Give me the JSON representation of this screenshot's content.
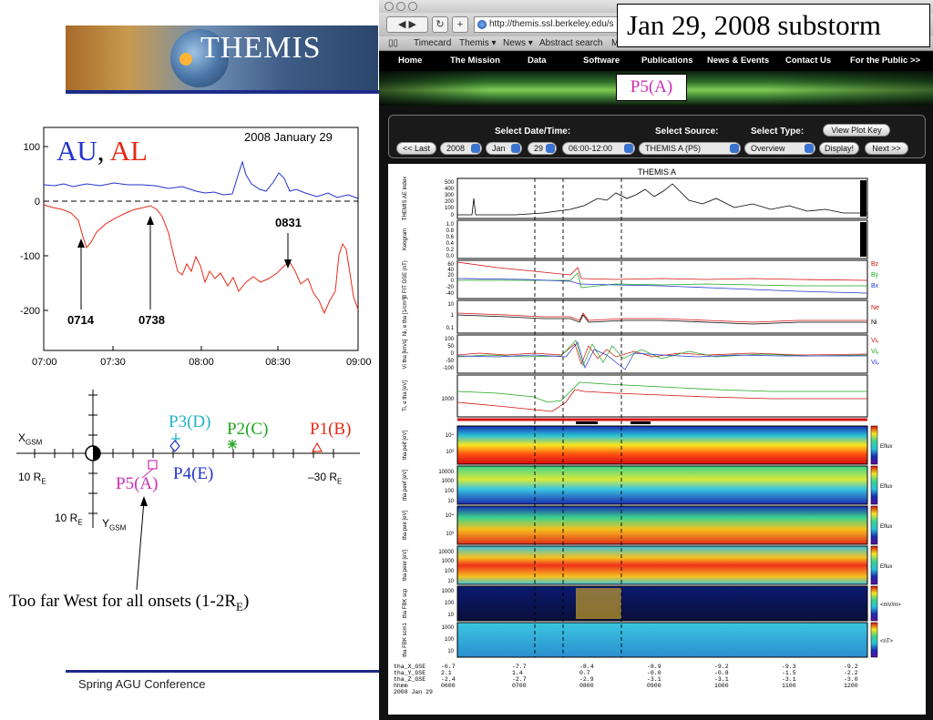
{
  "slide": {
    "logo_text": "THEMIS",
    "footer": "Spring AGU Conference",
    "callout": "Too far West for all onsets (1-2R",
    "callout_sub": "E",
    "callout_end": ")",
    "substorm_title": "Jan 29, 2008 substorm",
    "p5_label": "P5(A)"
  },
  "ae_plot": {
    "date": "2008 January 29",
    "au_label": "AU",
    "comma": ",",
    "al_label": "AL",
    "y_ticks": [
      "100",
      "0",
      "-100",
      "-200"
    ],
    "x_ticks": [
      "07:00",
      "07:30",
      "08:00",
      "08:30",
      "09:00"
    ],
    "annotations": [
      "0714",
      "0738",
      "0831"
    ],
    "colors": {
      "au": "#2233cc",
      "al": "#e52a15"
    }
  },
  "orbit_diagram": {
    "x_axis_label": "X",
    "x_axis_sub": "GSM",
    "y_axis_label": "Y",
    "y_axis_sub": "GSM",
    "left_scale": "10 R",
    "right_scale": "–30 R",
    "bottom_scale": "10 R",
    "scale_sub": "E",
    "probes": [
      {
        "label": "P3(D)",
        "color": "#1fb5c4"
      },
      {
        "label": "P2(C)",
        "color": "#1ea61e"
      },
      {
        "label": "P1(B)",
        "color": "#e52a15"
      },
      {
        "label": "P4(E)",
        "color": "#2233cc"
      },
      {
        "label": "P5(A)",
        "color": "#cc2fb7"
      }
    ]
  },
  "browser": {
    "url": "http://themis.ssl.berkeley.edu/s",
    "bookmarks": [
      "Timecard",
      "Themis ▾",
      "News ▾",
      "Abstract search",
      "M"
    ],
    "nav": [
      "Home",
      "The Mission",
      "Data",
      "Software",
      "Publications",
      "News & Events",
      "Contact Us",
      "For the Public >>"
    ],
    "select_date_label": "Select Date/Time:",
    "select_source_label": "Select Source:",
    "select_type_label": "Select Type:",
    "view_plot_key": "View Plot Key",
    "last_btn": "<< Last",
    "year": "2008",
    "month": "Jan",
    "day": "29",
    "time_range": "06:00-12:00",
    "source": "THEMIS A (P5)",
    "type": "Overview",
    "display_btn": "Display!",
    "next_btn": "Next >>"
  },
  "themis_plot": {
    "title": "THEMIS A",
    "panels": [
      {
        "ylabel": "THEMIS AE Index",
        "ticks": [
          "500",
          "400",
          "300",
          "200",
          "100",
          "0"
        ]
      },
      {
        "ylabel": "Keogram",
        "ticks": [
          "1.0",
          "0.8",
          "0.6",
          "0.4",
          "0.2",
          "0.0"
        ]
      },
      {
        "ylabel": "B FIT GSE (nT)",
        "ticks": [
          "60",
          "40",
          "20",
          "0",
          "-20",
          "-40"
        ],
        "legend": [
          "Bz",
          "By",
          "Bx"
        ]
      },
      {
        "ylabel": "Ni, e tha [1/cm³]",
        "ticks": [
          "10",
          "1",
          "0.1"
        ],
        "legend": [
          "Ne",
          "Ni"
        ]
      },
      {
        "ylabel": "Vi tha [km/s]",
        "ticks": [
          "100",
          "50",
          "0",
          "-50",
          "-100"
        ],
        "legend": [
          "Viₓ",
          "Viᵧ",
          "Viₔ"
        ]
      },
      {
        "ylabel": "Ti, e tha [eV]",
        "ticks": [
          "1000"
        ]
      },
      {
        "ylabel": "tha peif [eV]",
        "ticks": [
          "10⁴",
          "10³"
        ],
        "cbar": "Eflux"
      },
      {
        "ylabel": "tha peef [eV]",
        "ticks": [
          "10000",
          "1000",
          "100",
          "10"
        ],
        "cbar": "Eflux"
      },
      {
        "ylabel": "tha peir [eV]",
        "ticks": [
          "10⁴",
          "10³"
        ],
        "cbar": "Eflux"
      },
      {
        "ylabel": "tha peer [eV]",
        "ticks": [
          "10000",
          "1000",
          "100",
          "10"
        ],
        "cbar": "Eflux"
      },
      {
        "ylabel": "tha FBK scp",
        "ticks": [
          "1000",
          "100",
          "10"
        ],
        "cbar": "<mV/m>"
      },
      {
        "ylabel": "tha FBK scm1",
        "ticks": [
          "1000",
          "100",
          "10"
        ],
        "cbar": "<nT>"
      }
    ],
    "footer_rows": [
      {
        "label": "tha_X_GSE",
        "values": [
          "-6.7",
          "-7.7",
          "-8.4",
          "-8.9",
          "-9.2",
          "-9.3",
          "-9.2"
        ]
      },
      {
        "label": "tha_Y_GSE",
        "values": [
          "2.1",
          "1.4",
          "0.7",
          "-0.0",
          "-0.8",
          "-1.5",
          "-2.2"
        ]
      },
      {
        "label": "tha_Z_GSE",
        "values": [
          "-2.4",
          "-2.7",
          "-2.9",
          "-3.1",
          "-3.1",
          "-3.1",
          "-3.0"
        ]
      },
      {
        "label": "hhmm",
        "values": [
          "0600",
          "0700",
          "0800",
          "0900",
          "1000",
          "1100",
          "1200"
        ]
      }
    ],
    "footer_date": "2008 Jan 29"
  }
}
